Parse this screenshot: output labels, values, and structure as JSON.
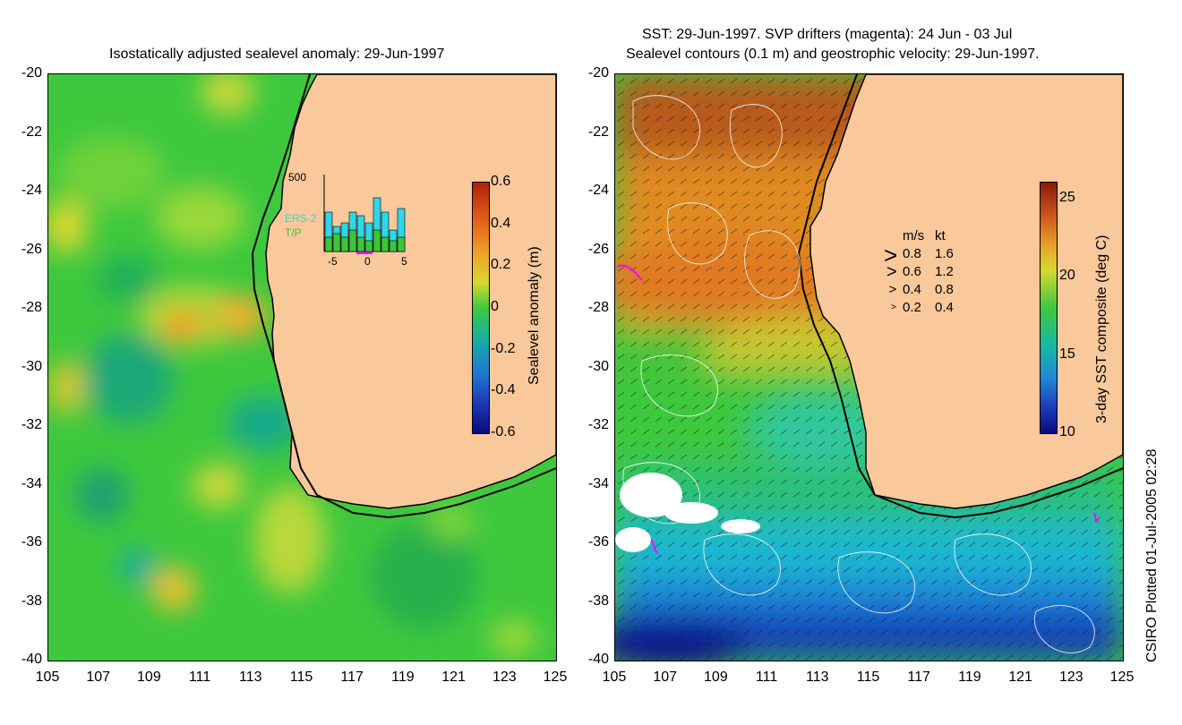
{
  "left_panel": {
    "title": "Isostatically adjusted sealevel anomaly: 29-Jun-1997",
    "y_ticks": [
      "-20",
      "-22",
      "-24",
      "-26",
      "-28",
      "-30",
      "-32",
      "-34",
      "-36",
      "-38",
      "-40"
    ],
    "x_ticks": [
      "105",
      "107",
      "109",
      "111",
      "113",
      "115",
      "117",
      "119",
      "121",
      "123",
      "125"
    ],
    "colorbar": {
      "label": "Sealevel anomaly (m)",
      "ticks": [
        "0.6",
        "0.4",
        "0.2",
        "0",
        "-0.2",
        "-0.4",
        "-0.6"
      ],
      "range": [
        -0.6,
        0.6
      ]
    },
    "inset": {
      "y_max_label": "500",
      "x_ticks": [
        "-5",
        "0",
        "5"
      ],
      "series_ers2": "ERS-2",
      "series_tp": "T/P",
      "ers2_values": [
        0.55,
        0.35,
        0.4,
        0.55,
        0.5,
        0.4,
        0.75,
        0.55,
        0.3,
        0.6
      ],
      "tp_values": [
        0.2,
        0.25,
        0.2,
        0.3,
        0.2,
        0.15,
        0.3,
        0.2,
        0.15,
        0.2
      ]
    }
  },
  "right_panel": {
    "title_line1": "SST: 29-Jun-1997. SVP drifters (magenta): 24 Jun - 03 Jul",
    "title_line2": "Sealevel contours (0.1 m) and geostrophic velocity: 29-Jun-1997.",
    "y_ticks": [
      "-20",
      "-22",
      "-24",
      "-26",
      "-28",
      "-30",
      "-32",
      "-34",
      "-36",
      "-38",
      "-40"
    ],
    "x_ticks": [
      "105",
      "107",
      "109",
      "111",
      "113",
      "115",
      "117",
      "119",
      "121",
      "123",
      "125"
    ],
    "colorbar": {
      "label": "3-day SST composite (deg C)",
      "ticks": [
        "25",
        "20",
        "15",
        "10"
      ],
      "range": [
        10,
        26
      ]
    },
    "velocity_legend": {
      "header_ms": "m/s",
      "header_kt": "kt",
      "rows": [
        {
          "ms": "0.8",
          "kt": "1.6"
        },
        {
          "ms": "0.6",
          "kt": "1.2"
        },
        {
          "ms": "0.4",
          "kt": "0.8"
        },
        {
          "ms": "0.2",
          "kt": "0.4"
        }
      ]
    }
  },
  "footer": "CSIRO Plotted 01-Jul-2005 02:28",
  "colors": {
    "land": "#f9c89b",
    "ocean_green": "#3ec83e",
    "warm_sst": "#c8641e"
  }
}
